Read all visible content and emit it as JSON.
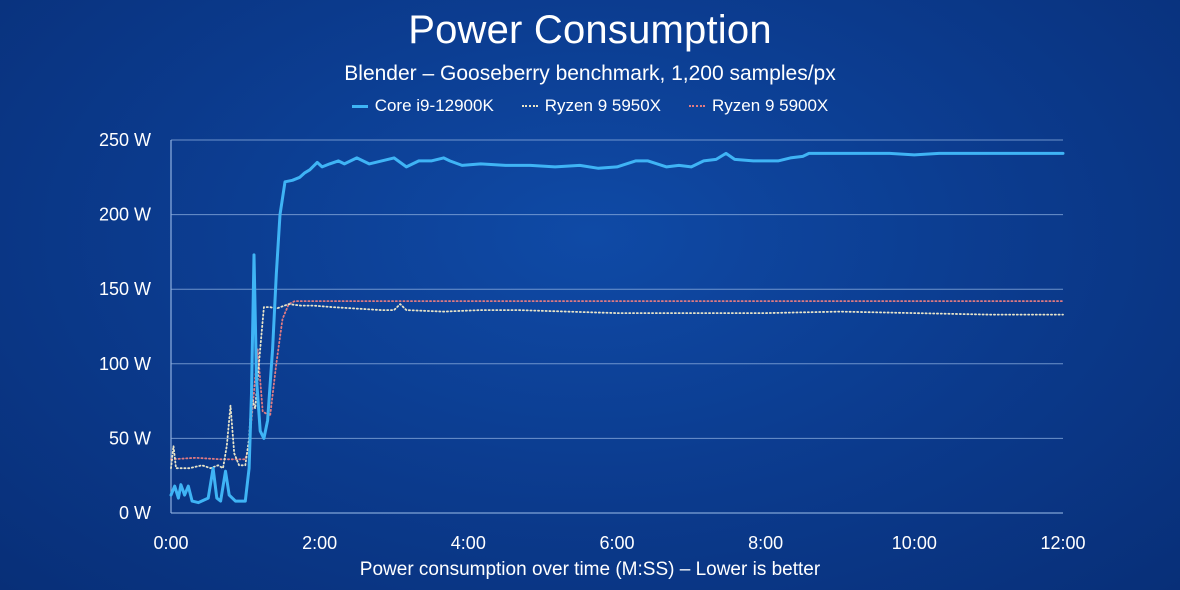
{
  "chart_data": {
    "type": "line",
    "title": "Power Consumption",
    "subtitle": "Blender – Gooseberry benchmark, 1,200 samples/px",
    "xlabel": "Power consumption over time (M:SS) – Lower is better",
    "ylabel": "",
    "xlim": [
      0,
      720
    ],
    "ylim": [
      0,
      250
    ],
    "yticks": [
      0,
      50,
      100,
      150,
      200,
      250
    ],
    "ytick_labels": [
      "0 W",
      "50 W",
      "100 W",
      "150 W",
      "200 W",
      "250 W"
    ],
    "xticks": [
      0,
      120,
      240,
      360,
      480,
      600,
      720
    ],
    "xtick_labels": [
      "0:00",
      "2:00",
      "4:00",
      "6:00",
      "8:00",
      "10:00",
      "12:00"
    ],
    "grid": "horizontal",
    "legend_position": "top-center",
    "series": [
      {
        "name": "Core i9-12900K",
        "color": "#3fb4f5",
        "style": "solid",
        "points": [
          [
            0,
            12
          ],
          [
            3,
            18
          ],
          [
            6,
            10
          ],
          [
            8,
            19
          ],
          [
            11,
            12
          ],
          [
            14,
            18
          ],
          [
            17,
            8
          ],
          [
            22,
            7
          ],
          [
            30,
            10
          ],
          [
            34,
            30
          ],
          [
            37,
            10
          ],
          [
            40,
            8
          ],
          [
            44,
            28
          ],
          [
            47,
            12
          ],
          [
            52,
            8
          ],
          [
            60,
            8
          ],
          [
            63,
            30
          ],
          [
            65,
            80
          ],
          [
            67,
            173
          ],
          [
            69,
            90
          ],
          [
            72,
            55
          ],
          [
            75,
            50
          ],
          [
            78,
            62
          ],
          [
            82,
            110
          ],
          [
            85,
            160
          ],
          [
            88,
            200
          ],
          [
            92,
            222
          ],
          [
            98,
            223
          ],
          [
            104,
            225
          ],
          [
            108,
            228
          ],
          [
            112,
            230
          ],
          [
            118,
            235
          ],
          [
            122,
            232
          ],
          [
            128,
            234
          ],
          [
            135,
            236
          ],
          [
            140,
            234
          ],
          [
            150,
            238
          ],
          [
            160,
            234
          ],
          [
            170,
            236
          ],
          [
            180,
            238
          ],
          [
            190,
            232
          ],
          [
            200,
            236
          ],
          [
            210,
            236
          ],
          [
            220,
            238
          ],
          [
            225,
            236
          ],
          [
            235,
            233
          ],
          [
            250,
            234
          ],
          [
            270,
            233
          ],
          [
            290,
            233
          ],
          [
            310,
            232
          ],
          [
            330,
            233
          ],
          [
            345,
            231
          ],
          [
            360,
            232
          ],
          [
            375,
            236
          ],
          [
            385,
            236
          ],
          [
            400,
            232
          ],
          [
            410,
            233
          ],
          [
            420,
            232
          ],
          [
            430,
            236
          ],
          [
            440,
            237
          ],
          [
            448,
            241
          ],
          [
            455,
            237
          ],
          [
            470,
            236
          ],
          [
            490,
            236
          ],
          [
            500,
            238
          ],
          [
            510,
            239
          ],
          [
            515,
            241
          ],
          [
            560,
            241
          ],
          [
            580,
            241
          ],
          [
            600,
            240
          ],
          [
            620,
            241
          ],
          [
            650,
            241
          ],
          [
            690,
            241
          ],
          [
            720,
            241
          ]
        ]
      },
      {
        "name": "Ryzen 9 5950X",
        "color": "#e8e4c8",
        "style": "dotted",
        "points": [
          [
            0,
            30
          ],
          [
            2,
            45
          ],
          [
            4,
            30
          ],
          [
            15,
            30
          ],
          [
            25,
            32
          ],
          [
            32,
            30
          ],
          [
            38,
            32
          ],
          [
            42,
            30
          ],
          [
            45,
            45
          ],
          [
            48,
            72
          ],
          [
            51,
            40
          ],
          [
            55,
            32
          ],
          [
            60,
            32
          ],
          [
            63,
            50
          ],
          [
            65,
            78
          ],
          [
            68,
            70
          ],
          [
            72,
            110
          ],
          [
            75,
            138
          ],
          [
            80,
            138
          ],
          [
            85,
            137
          ],
          [
            95,
            140
          ],
          [
            105,
            139
          ],
          [
            115,
            139
          ],
          [
            130,
            138
          ],
          [
            150,
            137
          ],
          [
            170,
            136
          ],
          [
            180,
            136
          ],
          [
            185,
            140
          ],
          [
            190,
            136
          ],
          [
            220,
            135
          ],
          [
            250,
            136
          ],
          [
            280,
            136
          ],
          [
            320,
            135
          ],
          [
            360,
            134
          ],
          [
            420,
            134
          ],
          [
            480,
            134
          ],
          [
            540,
            135
          ],
          [
            600,
            134
          ],
          [
            660,
            133
          ],
          [
            720,
            133
          ]
        ]
      },
      {
        "name": "Ryzen 9 5900X",
        "color": "#e07a82",
        "style": "dotted",
        "points": [
          [
            0,
            36
          ],
          [
            20,
            37
          ],
          [
            40,
            36
          ],
          [
            55,
            36
          ],
          [
            60,
            36
          ],
          [
            63,
            45
          ],
          [
            66,
            72
          ],
          [
            70,
            110
          ],
          [
            74,
            68
          ],
          [
            80,
            65
          ],
          [
            85,
            100
          ],
          [
            90,
            130
          ],
          [
            95,
            140
          ],
          [
            100,
            142
          ],
          [
            140,
            142
          ],
          [
            200,
            142
          ],
          [
            300,
            142
          ],
          [
            400,
            142
          ],
          [
            500,
            142
          ],
          [
            600,
            142
          ],
          [
            720,
            142
          ]
        ]
      }
    ]
  }
}
